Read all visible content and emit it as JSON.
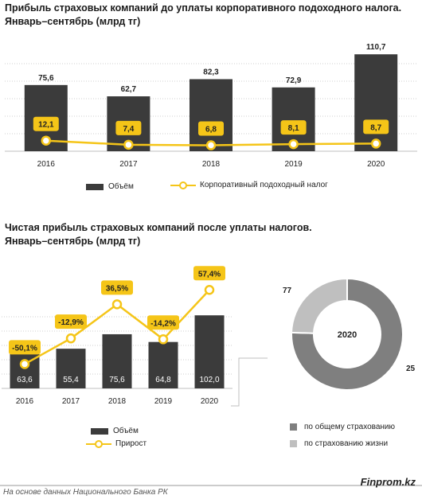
{
  "charts": {
    "top_title_line1": "Прибыль страховых компаний до уплаты корпоративного подоходного налога.",
    "top_title_line2": "Январь–сентябрь (млрд тг)",
    "bottom_title_line1": "Чистая прибыль страховых компаний после уплаты налогов.",
    "bottom_title_line2": "Январь–сентябрь (млрд тг)"
  },
  "footer": {
    "source": "На основе данных Национального Банка РК",
    "brand": "Finprom.kz"
  },
  "colors": {
    "bar": "#3b3b3b",
    "line": "#f5c518",
    "pie_general": "#7f7f7f",
    "pie_life": "#bfbfbf"
  },
  "chart_data": [
    {
      "type": "bar",
      "categories": [
        "2016",
        "2017",
        "2018",
        "2019",
        "2020"
      ],
      "series": [
        {
          "name": "Объём",
          "kind": "bar",
          "values": [
            75.6,
            62.7,
            82.3,
            72.9,
            110.7
          ],
          "labels": [
            "75,6",
            "62,7",
            "82,3",
            "72,9",
            "110,7"
          ]
        },
        {
          "name": "Корпоративный подоходный налог",
          "kind": "line",
          "values": [
            12.1,
            7.4,
            6.8,
            8.1,
            8.7
          ],
          "labels": [
            "12,1",
            "7,4",
            "6,8",
            "8,1",
            "8,7"
          ]
        }
      ],
      "ylim": [
        0,
        120
      ],
      "grid": true,
      "legend": "bottom"
    },
    {
      "type": "bar",
      "categories": [
        "2016",
        "2017",
        "2018",
        "2019",
        "2020"
      ],
      "series": [
        {
          "name": "Объём",
          "kind": "bar",
          "values": [
            63.6,
            55.4,
            75.6,
            64.8,
            102.0
          ],
          "labels": [
            "63,6",
            "55,4",
            "75,6",
            "64,8",
            "102,0"
          ]
        },
        {
          "name": "Прирост",
          "kind": "line",
          "values": [
            -50.1,
            -12.9,
            36.5,
            -14.2,
            57.4
          ],
          "labels": [
            "-50,1%",
            "-12,9%",
            "36,5%",
            "-14,2%",
            "57,4%"
          ]
        }
      ],
      "grid": true,
      "legend": "bottom"
    },
    {
      "type": "pie",
      "center_label": "2020",
      "categories": [
        "по общему страхованию",
        "по страхованию жизни"
      ],
      "values": [
        77,
        25
      ],
      "labels": [
        "77",
        "25"
      ],
      "legend": "bottom"
    }
  ]
}
